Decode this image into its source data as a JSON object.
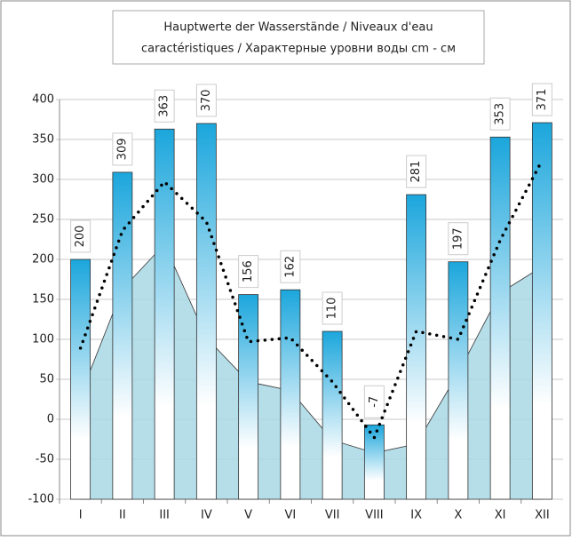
{
  "chart_data": {
    "type": "bar",
    "title": [
      "Hauptwerte der Wasserstände / Niveaux d'eau",
      "caractéristiques / Характерные уровни воды cm - см"
    ],
    "categories": [
      "I",
      "II",
      "III",
      "IV",
      "V",
      "VI",
      "VII",
      "VIII",
      "IX",
      "X",
      "XI",
      "XII"
    ],
    "series": [
      {
        "type": "area",
        "color": "#a9d8e4",
        "values": [
          30,
          163,
          219,
          102,
          47,
          36,
          -26,
          -42,
          -31,
          58,
          158,
          191
        ]
      },
      {
        "type": "bar",
        "color": "#1ba6dc",
        "values": [
          200,
          309,
          363,
          370,
          156,
          162,
          110,
          -7,
          281,
          197,
          353,
          371
        ]
      },
      {
        "type": "line",
        "color": "#000000",
        "values": [
          89,
          236,
          297,
          247,
          97,
          102,
          47,
          -23,
          110,
          100,
          224,
          324
        ]
      }
    ],
    "ylim": [
      -100,
      400
    ],
    "yticks": [
      -100,
      -50,
      0,
      50,
      100,
      150,
      200,
      250,
      300,
      350,
      400
    ],
    "grid": true
  }
}
